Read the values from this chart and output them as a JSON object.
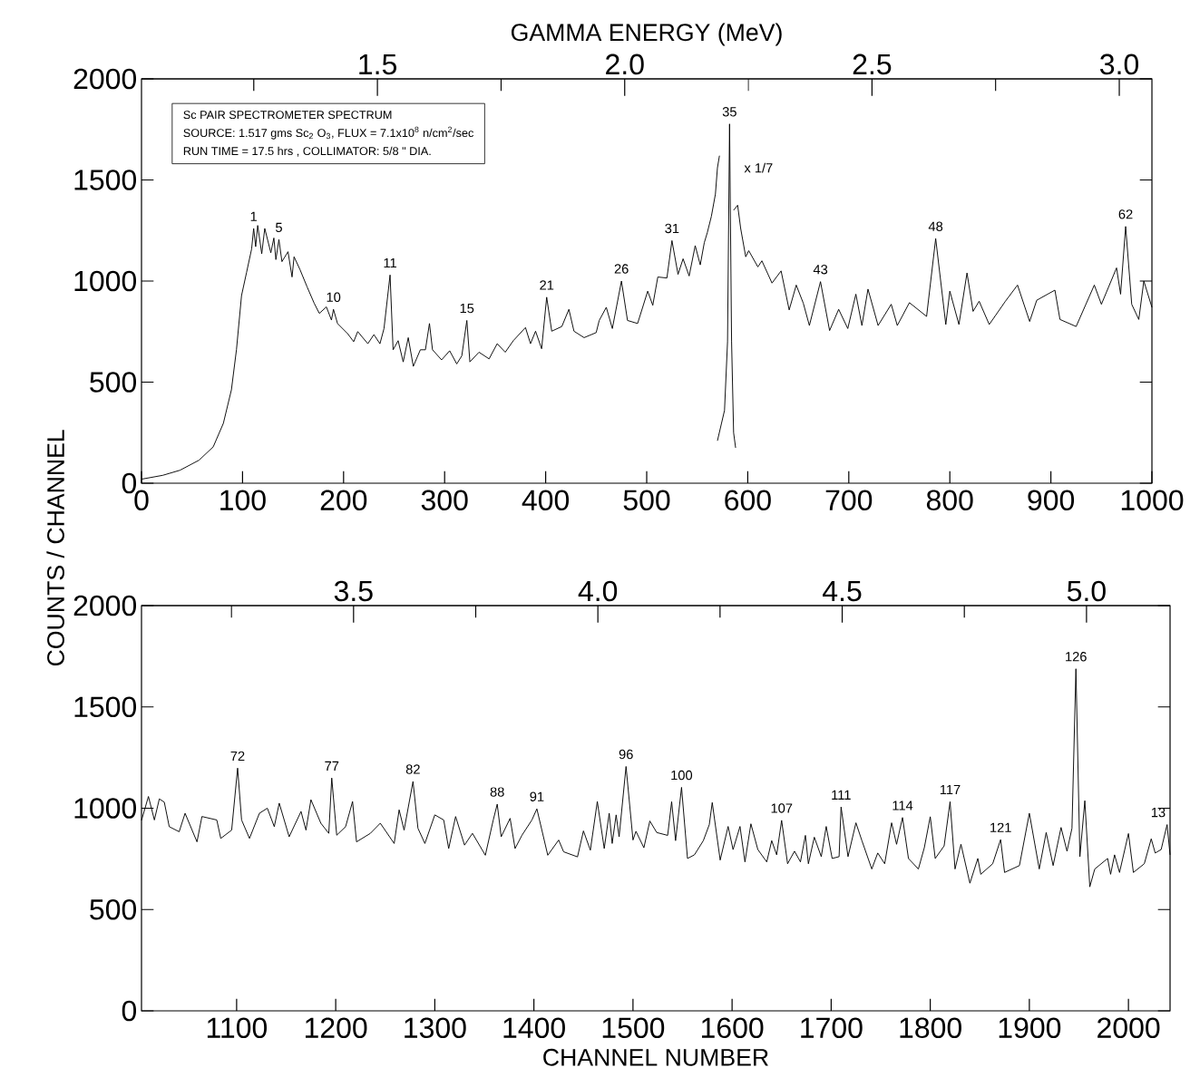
{
  "chart_data": [
    {
      "type": "line",
      "xlim": [
        0,
        1000
      ],
      "ylim": [
        0,
        2000
      ],
      "xticks": [
        0,
        100,
        200,
        300,
        400,
        500,
        600,
        700,
        800,
        900,
        1000
      ],
      "yticks": [
        0,
        500,
        1000,
        1500,
        2000
      ],
      "x2lim": [
        1.023,
        3.066
      ],
      "x2ticks": [
        {
          "value": 1.25,
          "label": null
        },
        1.5,
        {
          "value": 1.75,
          "label": null
        },
        {
          "value": 2,
          "label": "2.0"
        },
        {
          "value": 2.25,
          "label": null
        },
        2.5,
        {
          "value": 2.75,
          "label": null
        },
        {
          "value": 3,
          "label": "3.0"
        }
      ],
      "x2label": "GAMMA ENERGY (MeV)",
      "ylabel": "COUNTS / CHANNEL",
      "line_style": "solid",
      "series": [
        {
          "color": "#000000",
          "x": [
            0,
            21,
            38,
            57,
            71,
            81,
            89,
            94,
            99,
            104,
            109,
            111,
            113,
            115,
            119,
            122,
            128,
            131,
            133,
            136,
            139,
            145,
            149,
            151,
            157,
            164,
            171,
            176,
            183,
            188,
            190,
            194,
            204,
            210,
            214,
            224,
            230,
            236,
            240,
            246,
            249,
            254,
            259,
            264,
            269,
            276,
            281,
            285,
            288,
            297,
            305,
            312,
            317,
            322,
            325,
            334,
            344,
            352,
            360,
            368,
            380,
            385,
            390,
            396,
            401,
            406,
            416,
            423,
            428,
            438,
            450,
            453,
            460,
            466,
            475,
            481,
            491,
            501,
            506,
            511,
            520,
            525,
            531,
            536,
            542,
            548,
            553,
            557,
            560,
            564,
            568,
            570,
            572,
            579,
            586,
            590,
            593,
            598,
            601,
            610,
            614,
            624,
            633,
            641,
            648,
            655,
            661,
            672,
            681,
            690,
            699,
            707,
            713,
            719,
            729,
            742,
            748,
            760,
            777,
            786,
            796,
            800,
            809,
            817,
            823,
            829,
            839,
            855,
            867,
            879,
            886,
            904,
            909,
            925,
            943,
            950,
            965,
            969,
            974,
            980,
            987,
            992,
            1000
          ],
          "values": [
            20,
            39,
            64,
            114,
            180,
            296,
            462,
            661,
            928,
            1043,
            1159,
            1260,
            1170,
            1275,
            1135,
            1260,
            1140,
            1213,
            1106,
            1205,
            1096,
            1145,
            1020,
            1120,
            1055,
            970,
            889,
            840,
            872,
            807,
            860,
            790,
            740,
            700,
            750,
            690,
            735,
            690,
            765,
            1030,
            660,
            705,
            600,
            720,
            578,
            660,
            660,
            790,
            660,
            610,
            655,
            590,
            630,
            805,
            600,
            648,
            615,
            690,
            648,
            705,
            770,
            690,
            752,
            665,
            920,
            752,
            775,
            860,
            752,
            720,
            745,
            805,
            870,
            765,
            1000,
            805,
            790,
            950,
            880,
            1020,
            1015,
            1200,
            1033,
            1110,
            1025,
            1175,
            1080,
            1190,
            1240,
            1320,
            1430,
            1560,
            1620,
            null,
            1350,
            1375,
            1260,
            1120,
            1150,
            1070,
            1100,
            990,
            1050,
            857,
            980,
            890,
            780,
            997,
            755,
            860,
            765,
            935,
            780,
            960,
            780,
            885,
            780,
            893,
            825,
            1210,
            785,
            950,
            785,
            1040,
            850,
            900,
            785,
            900,
            980,
            800,
            905,
            955,
            810,
            775,
            980,
            885,
            1065,
            935,
            1270,
            885,
            810,
            1000,
            870
          ]
        },
        {
          "color": "#000000",
          "x": [
            570,
            577,
            580,
            582,
            584,
            586,
            588
          ],
          "values": [
            210,
            360,
            700,
            1777,
            700,
            250,
            175
          ]
        }
      ],
      "annotations": [
        "Sc PAIR SPECTROMETER SPECTRUM",
        "SOURCE: 1.517 gms Sc$_{2}$ O$_{3}$, FLUX = 7.1x10$^{8}$ n/cm$^{2}$/sec",
        "RUN TIME = 17.5 hrs , COLLIMATOR: 5/8 \" DIA.",
        {
          "text": "1",
          "x": 111,
          "y": 1260
        },
        {
          "text": "5",
          "x": 136,
          "y": 1205
        },
        {
          "text": "10",
          "x": 190,
          "y": 860
        },
        {
          "text": "11",
          "x": 246,
          "y": 1030
        },
        {
          "text": "15",
          "x": 322,
          "y": 805
        },
        {
          "text": "21",
          "x": 401,
          "y": 920
        },
        {
          "text": "26",
          "x": 475,
          "y": 1000
        },
        {
          "text": "31",
          "x": 525,
          "y": 1200
        },
        {
          "text": "35",
          "x": 582,
          "y": 1777
        },
        "x 1/7",
        {
          "text": "43",
          "x": 672,
          "y": 997
        },
        {
          "text": "48",
          "x": 786,
          "y": 1210
        },
        {
          "text": "62",
          "x": 974,
          "y": 1270
        }
      ]
    },
    {
      "type": "line",
      "xlim": [
        1004,
        2042
      ],
      "ylim": [
        0,
        2000
      ],
      "xticks": [
        1100,
        1200,
        1300,
        1400,
        1500,
        1600,
        1700,
        1800,
        1900,
        2000
      ],
      "yticks": [
        0,
        500,
        1000,
        1500,
        2000
      ],
      "x2lim": [
        3.066,
        5.171
      ],
      "x2ticks": [
        {
          "value": 3.25,
          "label": null
        },
        3.5,
        {
          "value": 3.75,
          "label": null
        },
        {
          "value": 4,
          "label": "4.0"
        },
        {
          "value": 4.25,
          "label": null
        },
        4.5,
        {
          "value": 4.75,
          "label": null
        },
        {
          "value": 5,
          "label": "5.0"
        }
      ],
      "xlabel": "CHANNEL NUMBER",
      "line_style": "solid",
      "series": [
        {
          "color": "#000000",
          "x": [
            1004,
            1011,
            1017,
            1022,
            1027,
            1032,
            1042,
            1048,
            1060,
            1065,
            1080,
            1084,
            1095,
            1101,
            1105,
            1113,
            1123,
            1131,
            1138,
            1143,
            1153,
            1165,
            1170,
            1175,
            1185,
            1193,
            1196,
            1201,
            1210,
            1217,
            1221,
            1235,
            1245,
            1259,
            1264,
            1269,
            1278,
            1283,
            1290,
            1300,
            1309,
            1314,
            1321,
            1330,
            1338,
            1351,
            1359,
            1363,
            1367,
            1376,
            1381,
            1388,
            1398,
            1403,
            1414,
            1425,
            1430,
            1444,
            1450,
            1457,
            1464,
            1471,
            1476,
            1479,
            1483,
            1486,
            1493,
            1500,
            1503,
            1511,
            1517,
            1524,
            1535,
            1539,
            1543,
            1549,
            1555,
            1562,
            1571,
            1577,
            1580,
            1588,
            1596,
            1601,
            1608,
            1613,
            1619,
            1626,
            1635,
            1640,
            1645,
            1650,
            1656,
            1663,
            1669,
            1674,
            1677,
            1683,
            1690,
            1695,
            1701,
            1708,
            1710,
            1717,
            1725,
            1731,
            1741,
            1747,
            1754,
            1761,
            1766,
            1772,
            1778,
            1788,
            1794,
            1800,
            1805,
            1814,
            1820,
            1825,
            1831,
            1840,
            1848,
            1851,
            1863,
            1871,
            1875,
            1890,
            1900,
            1910,
            1917,
            1924,
            1932,
            1938,
            1943,
            1947,
            1951,
            1956,
            1961,
            1966,
            1979,
            1982,
            1986,
            1991,
            2000,
            2005,
            2016,
            2023,
            2027,
            2033,
            2039,
            2042
          ],
          "values": [
            940,
            1058,
            942,
            1046,
            1030,
            909,
            884,
            975,
            834,
            959,
            942,
            851,
            892,
            1198,
            942,
            851,
            975,
            1000,
            909,
            1025,
            859,
            984,
            892,
            1042,
            926,
            876,
            1149,
            867,
            909,
            1033,
            834,
            876,
            926,
            826,
            992,
            892,
            1132,
            901,
            826,
            967,
            942,
            801,
            959,
            818,
            876,
            768,
            942,
            1020,
            859,
            950,
            801,
            867,
            942,
            997,
            768,
            843,
            785,
            760,
            888,
            793,
            1033,
            801,
            975,
            826,
            967,
            859,
            1206,
            843,
            886,
            805,
            937,
            880,
            866,
            1032,
            840,
            1103,
            752,
            770,
            840,
            919,
            1028,
            744,
            910,
            796,
            910,
            735,
            923,
            796,
            735,
            840,
            770,
            940,
            726,
            788,
            735,
            866,
            726,
            857,
            761,
            910,
            752,
            761,
            1006,
            761,
            928,
            840,
            700,
            779,
            726,
            928,
            822,
            954,
            752,
            700,
            805,
            958,
            752,
            814,
            1032,
            700,
            822,
            630,
            752,
            674,
            726,
            845,
            683,
            717,
            975,
            700,
            880,
            717,
            905,
            788,
            901,
            1688,
            761,
            1037,
            612,
            700,
            752,
            674,
            770,
            683,
            875,
            683,
            726,
            849,
            779,
            796,
            919,
            770
          ]
        }
      ],
      "annotations": [
        {
          "text": "72",
          "x": 1101,
          "y": 1198
        },
        {
          "text": "77",
          "x": 1196,
          "y": 1149
        },
        {
          "text": "82",
          "x": 1278,
          "y": 1132
        },
        {
          "text": "88",
          "x": 1363,
          "y": 1020
        },
        {
          "text": "91",
          "x": 1403,
          "y": 997
        },
        {
          "text": "96",
          "x": 1493,
          "y": 1206
        },
        {
          "text": "100",
          "x": 1549,
          "y": 1103
        },
        {
          "text": "107",
          "x": 1650,
          "y": 940
        },
        {
          "text": "111",
          "x": 1710,
          "y": 1006
        },
        {
          "text": "114",
          "x": 1772,
          "y": 954
        },
        {
          "text": "117",
          "x": 1820,
          "y": 1032
        },
        {
          "text": "121",
          "x": 1871,
          "y": 845
        },
        {
          "text": "126",
          "x": 1947,
          "y": 1688
        },
        {
          "text": "13",
          "x": 2039,
          "y": 919
        }
      ]
    }
  ]
}
